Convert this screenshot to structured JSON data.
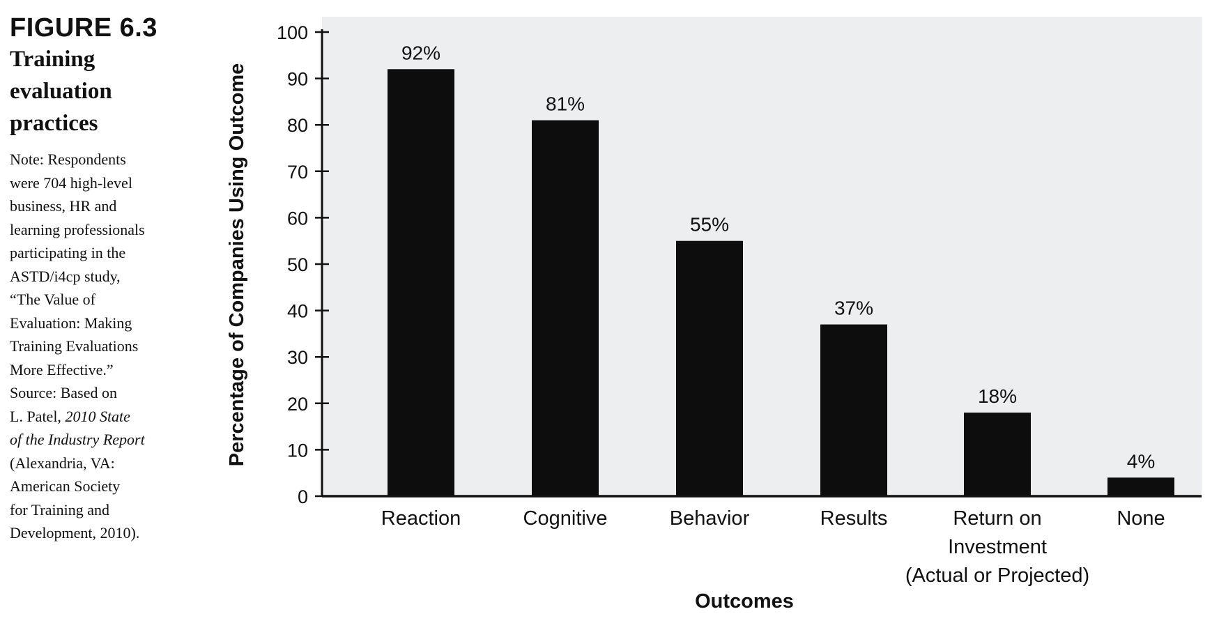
{
  "figure": {
    "number": "FIGURE 6.3",
    "title_lines": [
      "Training",
      "evaluation",
      "practices"
    ],
    "note_lines": [
      "Note: Respondents",
      "were 704 high-level",
      "business, HR and",
      "learning professionals",
      "participating in the",
      "ASTD/i4cp study,",
      "“The Value of",
      "Evaluation: Making",
      "Training Evaluations",
      "More Effective.”",
      "Source: Based on",
      "L. Patel, ",
      "of the Industry Report",
      "(Alexandria, VA:",
      "American Society",
      "for Training and",
      "Development, 2010)."
    ],
    "note_italic": {
      "line_11": "2010 State"
    }
  },
  "chart_data": {
    "type": "bar",
    "categories": [
      [
        "Reaction"
      ],
      [
        "Cognitive"
      ],
      [
        "Behavior"
      ],
      [
        "Results"
      ],
      [
        "Return on",
        "Investment",
        "(Actual or Projected)"
      ],
      [
        "None"
      ]
    ],
    "values": [
      92,
      81,
      55,
      37,
      18,
      4
    ],
    "data_labels": [
      "92%",
      "81%",
      "55%",
      "37%",
      "18%",
      "4%"
    ],
    "title": "",
    "xlabel": "Outcomes",
    "ylabel": "Percentage of Companies Using Outcome",
    "ylim": [
      0,
      100
    ],
    "yticks": [
      0,
      10,
      20,
      30,
      40,
      50,
      60,
      70,
      80,
      90,
      100
    ],
    "grid": false,
    "colors": {
      "plot_background": "#eceef0",
      "bar": "#0d0d0d",
      "axis": "#111111"
    }
  }
}
